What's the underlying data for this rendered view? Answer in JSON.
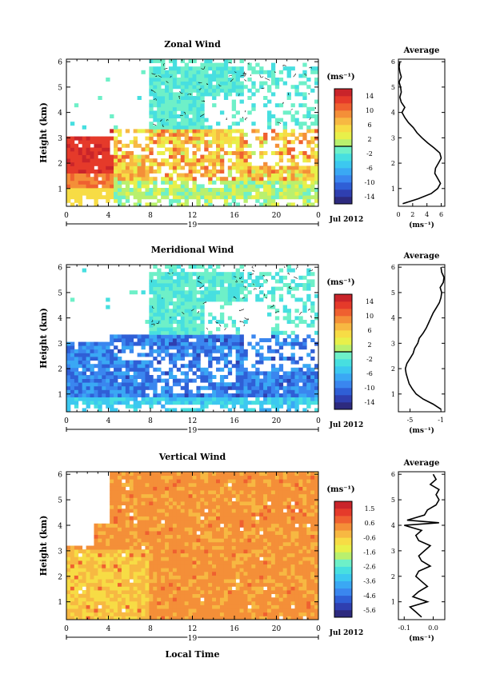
{
  "chart_data": [
    {
      "type": "heatmap",
      "title": "Zonal Wind",
      "ylabel": "Height (km)",
      "x_ticks": [
        "0",
        "4",
        "8",
        "12",
        "16",
        "20",
        "0"
      ],
      "y_ticks": [
        "1",
        "2",
        "3",
        "4",
        "5",
        "6"
      ],
      "date_marker": "19",
      "date_label": "Jul 2012",
      "colorbar": {
        "unit": "(ms⁻¹)",
        "ticks": [
          "14",
          "10",
          "6",
          "2",
          "-2",
          "-6",
          "-10",
          "-14"
        ],
        "range": [
          -16,
          16
        ]
      },
      "profile": {
        "title": "Average",
        "x_ticks": [
          "0",
          "2",
          "4",
          "6"
        ],
        "y_ticks": [
          "1",
          "2",
          "3",
          "4",
          "5",
          "6"
        ],
        "xlabel": "(ms⁻¹)",
        "xlim": [
          0,
          6.5
        ],
        "ylim": [
          0.3,
          6.1
        ],
        "heights": [
          0.4,
          0.6,
          0.8,
          1.0,
          1.2,
          1.4,
          1.6,
          1.8,
          2.0,
          2.2,
          2.4,
          2.6,
          2.8,
          3.0,
          3.2,
          3.4,
          3.6,
          3.8,
          4.0,
          4.2,
          4.4,
          4.6,
          4.8,
          5.0,
          5.2,
          5.4,
          5.6,
          5.8,
          6.0
        ],
        "values": [
          0.6,
          2.8,
          4.6,
          5.5,
          5.9,
          5.5,
          5.1,
          5.2,
          5.6,
          6.0,
          5.8,
          5.0,
          4.1,
          3.3,
          2.6,
          2.1,
          1.4,
          0.9,
          0.5,
          0.9,
          0.4,
          0.2,
          0.4,
          0.3,
          0.1,
          0.4,
          0.2,
          0.1,
          0.2
        ]
      }
    },
    {
      "type": "heatmap",
      "title": "Meridional Wind",
      "ylabel": "Height (km)",
      "x_ticks": [
        "0",
        "4",
        "8",
        "12",
        "16",
        "20",
        "0"
      ],
      "y_ticks": [
        "1",
        "2",
        "3",
        "4",
        "5",
        "6"
      ],
      "date_marker": "19",
      "date_label": "Jul 2012",
      "colorbar": {
        "unit": "(ms⁻¹)",
        "ticks": [
          "14",
          "10",
          "6",
          "2",
          "-2",
          "-6",
          "-10",
          "-14"
        ],
        "range": [
          -16,
          16
        ]
      },
      "profile": {
        "title": "Average",
        "x_ticks": [
          "-5",
          "-1"
        ],
        "y_ticks": [
          "1",
          "2",
          "3",
          "4",
          "5",
          "6"
        ],
        "xlabel": "(ms⁻¹)",
        "xlim": [
          -6.5,
          -0.5
        ],
        "ylim": [
          0.3,
          6.1
        ],
        "heights": [
          0.4,
          0.6,
          0.8,
          1.0,
          1.2,
          1.4,
          1.6,
          1.8,
          2.0,
          2.2,
          2.4,
          2.6,
          2.8,
          3.0,
          3.2,
          3.4,
          3.6,
          3.8,
          4.0,
          4.2,
          4.4,
          4.6,
          4.8,
          5.0,
          5.2,
          5.4,
          5.6,
          5.8,
          6.0
        ],
        "values": [
          -1.0,
          -2.0,
          -3.3,
          -4.2,
          -4.7,
          -5.1,
          -5.3,
          -5.5,
          -5.6,
          -5.4,
          -5.0,
          -4.6,
          -4.4,
          -4.0,
          -3.8,
          -3.3,
          -2.9,
          -2.6,
          -2.3,
          -2.0,
          -1.6,
          -1.2,
          -1.0,
          -0.9,
          -1.1,
          -0.7,
          -0.6,
          -0.9,
          -1.0
        ]
      }
    },
    {
      "type": "heatmap",
      "title": "Vertical Wind",
      "ylabel": "Height (km)",
      "xlabel": "Local Time",
      "x_ticks": [
        "0",
        "4",
        "8",
        "12",
        "16",
        "20",
        "0"
      ],
      "y_ticks": [
        "1",
        "2",
        "3",
        "4",
        "5",
        "6"
      ],
      "date_marker": "19",
      "date_label": "Jul 2012",
      "colorbar": {
        "unit": "(ms⁻¹)",
        "ticks": [
          "1.5",
          "0.6",
          "-0.6",
          "-1.6",
          "-2.6",
          "-3.6",
          "-4.6",
          "-5.6"
        ],
        "range": [
          -6,
          2
        ]
      },
      "profile": {
        "title": "Average",
        "x_ticks": [
          "-0.1",
          "0.0"
        ],
        "y_ticks": [
          "1",
          "2",
          "3",
          "4",
          "5",
          "6"
        ],
        "xlabel": "(ms⁻¹)",
        "xlim": [
          -0.12,
          0.04
        ],
        "ylim": [
          0.3,
          6.1
        ],
        "heights": [
          0.4,
          0.6,
          0.8,
          1.0,
          1.2,
          1.4,
          1.6,
          1.8,
          2.0,
          2.2,
          2.4,
          2.6,
          2.8,
          3.0,
          3.2,
          3.4,
          3.6,
          3.8,
          4.0,
          4.1,
          4.2,
          4.4,
          4.6,
          4.8,
          5.0,
          5.2,
          5.4,
          5.6,
          5.8,
          6.0
        ],
        "values": [
          -0.04,
          -0.06,
          -0.08,
          -0.02,
          -0.07,
          -0.05,
          -0.02,
          -0.04,
          -0.06,
          -0.05,
          -0.01,
          -0.04,
          -0.05,
          -0.03,
          -0.01,
          -0.05,
          -0.06,
          -0.04,
          -0.1,
          0.02,
          -0.09,
          -0.03,
          -0.02,
          0.01,
          0.02,
          0.01,
          0.02,
          -0.01,
          0.01,
          0.0
        ]
      }
    }
  ]
}
